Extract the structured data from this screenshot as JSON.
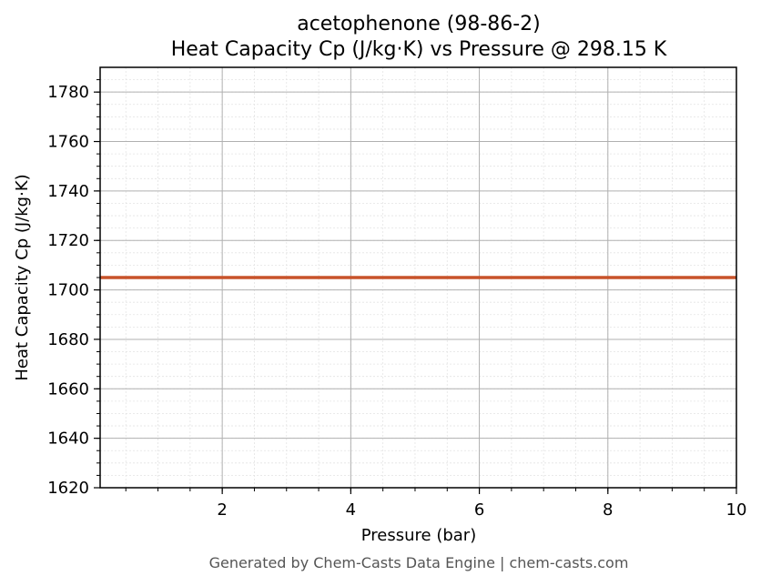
{
  "chart_data": {
    "type": "line",
    "title": "acetophenone (98-86-2)",
    "subtitle": "Heat Capacity Cp (J/kg·K) vs Pressure @ 298.15 K",
    "xlabel": "Pressure (bar)",
    "ylabel": "Heat Capacity Cp (J/kg·K)",
    "xlim": [
      0.1,
      10
    ],
    "ylim": [
      1620,
      1790
    ],
    "x_ticks": [
      2,
      4,
      6,
      8,
      10
    ],
    "y_ticks": [
      1620,
      1640,
      1660,
      1680,
      1700,
      1720,
      1740,
      1760,
      1780
    ],
    "x_minor_step": 0.5,
    "y_minor_step": 5,
    "grid": true,
    "series": [
      {
        "x": [
          0.1,
          10
        ],
        "y": [
          1705,
          1705
        ],
        "color": "#c8532a"
      }
    ]
  },
  "footer": "Generated by Chem-Casts Data Engine | chem-casts.com"
}
